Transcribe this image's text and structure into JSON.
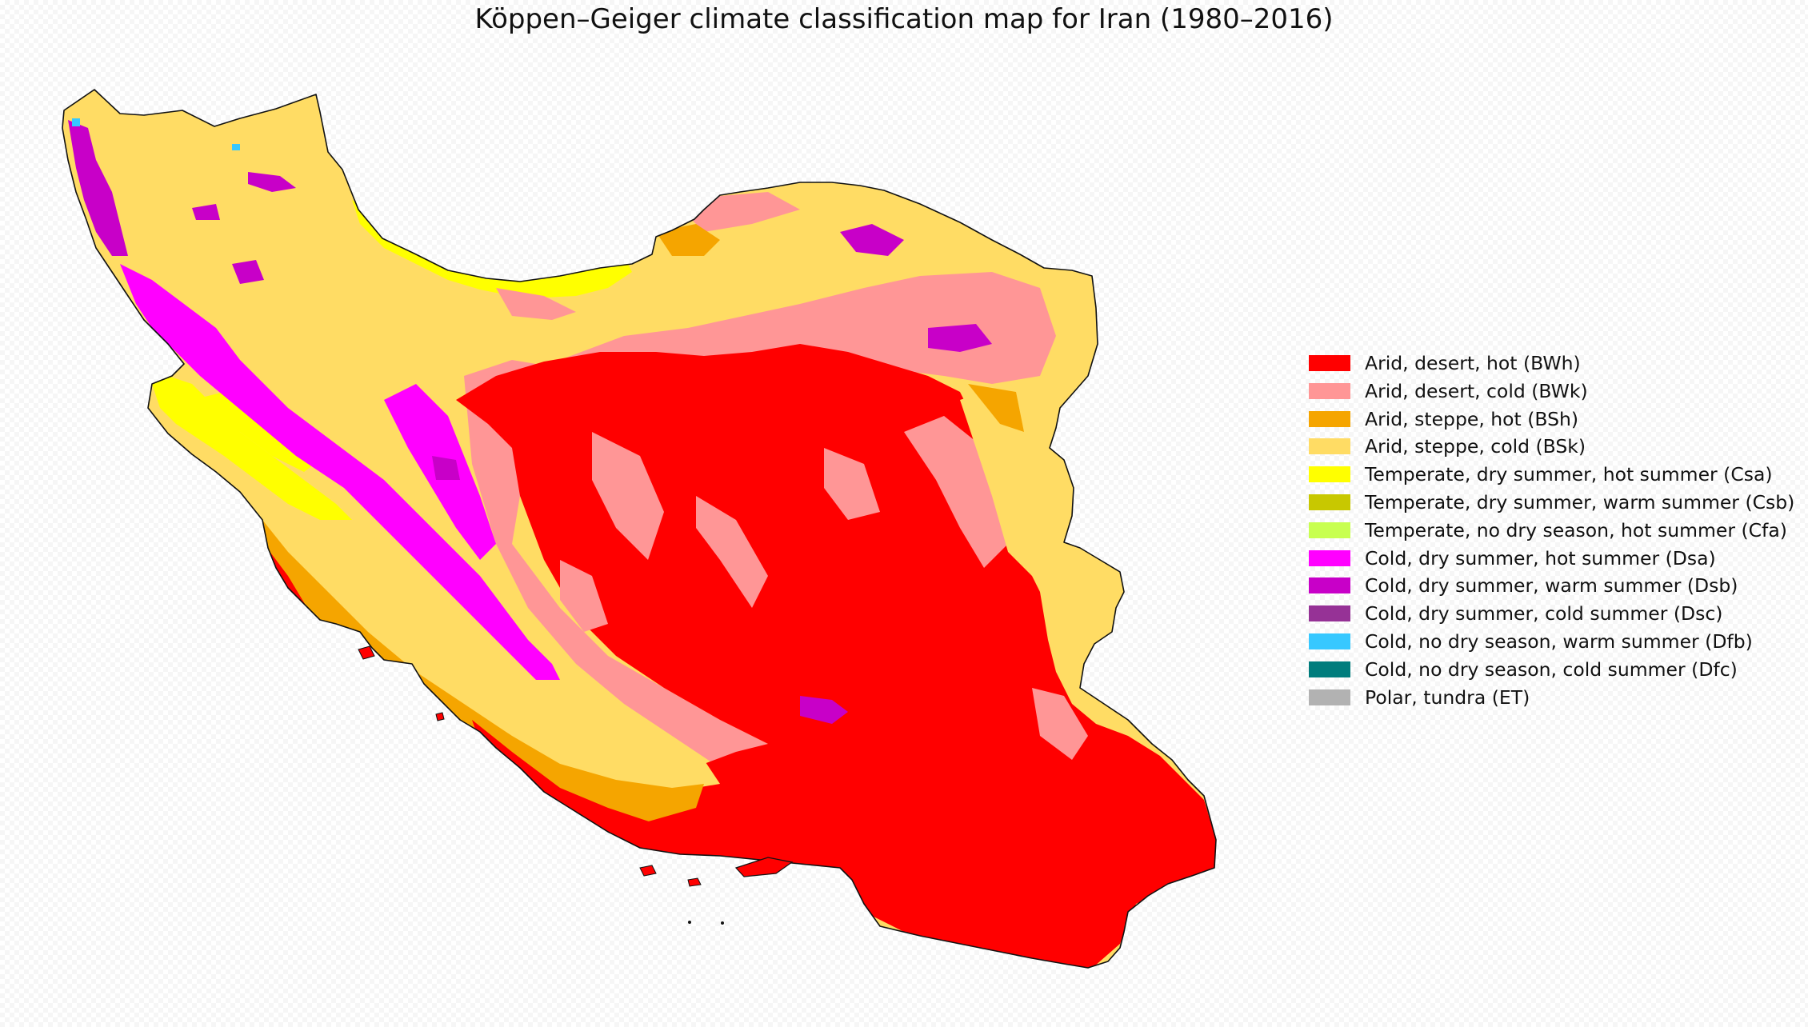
{
  "title": "Köppen–Geiger climate classification map for Iran (1980–2016)",
  "legend": {
    "items": [
      {
        "label": "Arid, desert, hot (BWh)",
        "code": "BWh",
        "color": "#ff0000"
      },
      {
        "label": "Arid, desert, cold (BWk)",
        "code": "BWk",
        "color": "#ff9696"
      },
      {
        "label": "Arid, steppe, hot (BSh)",
        "code": "BSh",
        "color": "#f5a500"
      },
      {
        "label": "Arid, steppe, cold (BSk)",
        "code": "BSk",
        "color": "#ffdc64"
      },
      {
        "label": "Temperate, dry summer, hot summer (Csa)",
        "code": "Csa",
        "color": "#ffff00"
      },
      {
        "label": "Temperate, dry summer, warm summer (Csb)",
        "code": "Csb",
        "color": "#c8c800"
      },
      {
        "label": "Temperate, no dry season, hot summer (Cfa)",
        "code": "Cfa",
        "color": "#c8ff50"
      },
      {
        "label": "Cold, dry summer, hot summer (Dsa)",
        "code": "Dsa",
        "color": "#ff00ff"
      },
      {
        "label": "Cold, dry summer, warm summer (Dsb)",
        "code": "Dsb",
        "color": "#c800c8"
      },
      {
        "label": "Cold, dry summer, cold summer (Dsc)",
        "code": "Dsc",
        "color": "#963296"
      },
      {
        "label": "Cold, no dry season, warm summer (Dfb)",
        "code": "Dfb",
        "color": "#37c8ff"
      },
      {
        "label": "Cold, no dry season, cold summer (Dfc)",
        "code": "Dfc",
        "color": "#007d7d"
      },
      {
        "label": "Polar, tundra (ET)",
        "code": "ET",
        "color": "#b2b2b2"
      }
    ]
  }
}
